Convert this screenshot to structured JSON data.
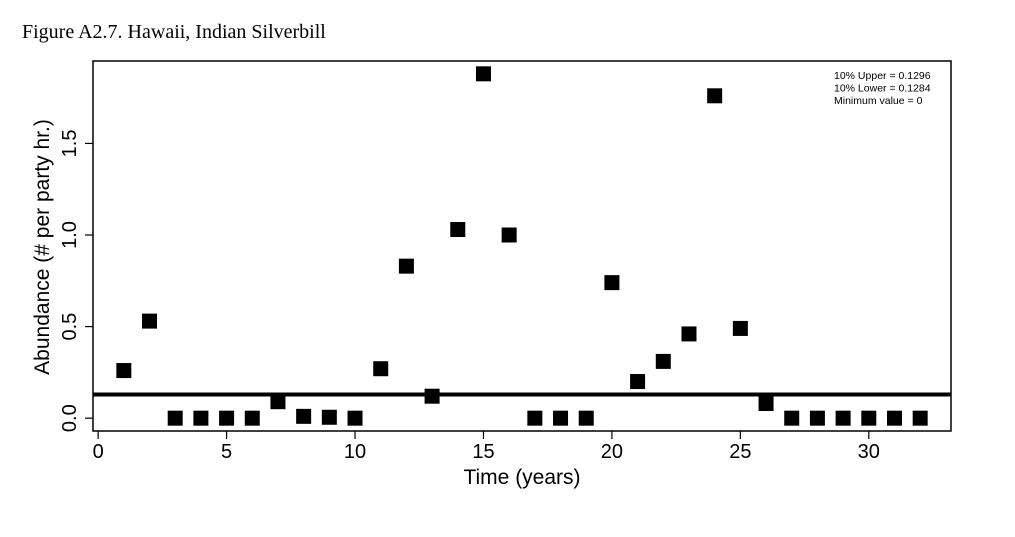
{
  "figure_title": "Figure A2.7. Hawaii, Indian Silverbill",
  "chart_data": {
    "type": "scatter",
    "title": "",
    "xlabel": "Time (years)",
    "ylabel": "Abundance (# per party hr.)",
    "xlim": [
      -0.2,
      33.2
    ],
    "ylim": [
      -0.07,
      1.95
    ],
    "x_ticks": [
      0,
      5,
      10,
      15,
      20,
      25,
      30
    ],
    "y_ticks": [
      0.0,
      0.5,
      1.0,
      1.5
    ],
    "y_tick_labels": [
      "0.0",
      "0.5",
      "1.0",
      "1.5"
    ],
    "grid": false,
    "marker": "square",
    "marker_color": "#000000",
    "reference_line": {
      "y": 0.129,
      "color": "#000000"
    },
    "legend": {
      "placement": "top-right",
      "lines": [
        "10% Upper = 0.1296",
        "10% Lower = 0.1284",
        "Minimum value = 0"
      ]
    },
    "points": [
      {
        "x": 1,
        "y": 0.26
      },
      {
        "x": 2,
        "y": 0.53
      },
      {
        "x": 3,
        "y": 0.0
      },
      {
        "x": 4,
        "y": 0.0
      },
      {
        "x": 5,
        "y": 0.0
      },
      {
        "x": 6,
        "y": 0.0
      },
      {
        "x": 7,
        "y": 0.09
      },
      {
        "x": 8,
        "y": 0.01
      },
      {
        "x": 9,
        "y": 0.005
      },
      {
        "x": 10,
        "y": 0.0
      },
      {
        "x": 11,
        "y": 0.27
      },
      {
        "x": 12,
        "y": 0.83
      },
      {
        "x": 13,
        "y": 0.12
      },
      {
        "x": 14,
        "y": 1.03
      },
      {
        "x": 15,
        "y": 1.88
      },
      {
        "x": 16,
        "y": 1.0
      },
      {
        "x": 17,
        "y": 0.0
      },
      {
        "x": 18,
        "y": 0.0
      },
      {
        "x": 19,
        "y": 0.0
      },
      {
        "x": 20,
        "y": 0.74
      },
      {
        "x": 21,
        "y": 0.2
      },
      {
        "x": 22,
        "y": 0.31
      },
      {
        "x": 23,
        "y": 0.46
      },
      {
        "x": 24,
        "y": 1.76
      },
      {
        "x": 25,
        "y": 0.49
      },
      {
        "x": 26,
        "y": 0.08
      },
      {
        "x": 27,
        "y": 0.0
      },
      {
        "x": 28,
        "y": 0.0
      },
      {
        "x": 29,
        "y": 0.0
      },
      {
        "x": 30,
        "y": 0.0
      },
      {
        "x": 31,
        "y": 0.0
      },
      {
        "x": 32,
        "y": 0.0
      }
    ]
  }
}
